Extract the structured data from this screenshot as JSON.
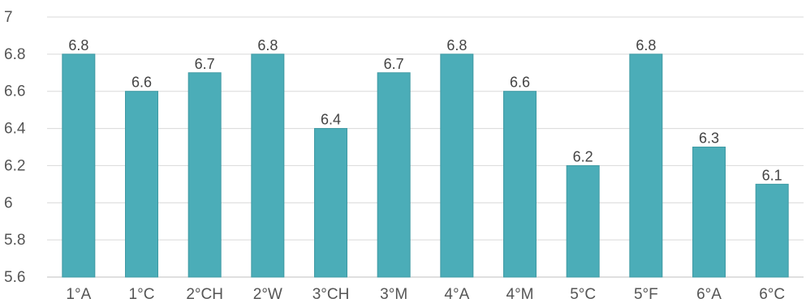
{
  "chart_data": {
    "type": "bar",
    "title": "",
    "xlabel": "",
    "ylabel": "",
    "categories": [
      "1°A",
      "1°C",
      "2°CH",
      "2°W",
      "3°CH",
      "3°M",
      "4°A",
      "4°M",
      "5°C",
      "5°F",
      "6°A",
      "6°C"
    ],
    "values": [
      6.8,
      6.6,
      6.7,
      6.8,
      6.4,
      6.7,
      6.8,
      6.6,
      6.2,
      6.8,
      6.3,
      6.1
    ],
    "data_labels": [
      "6.8",
      "6.6",
      "6.7",
      "6.8",
      "6.4",
      "6.7",
      "6.8",
      "6.6",
      "6.2",
      "6.8",
      "6.3",
      "6.1"
    ],
    "ylim": [
      5.6,
      7
    ],
    "yticks": [
      5.6,
      5.8,
      6,
      6.2,
      6.4,
      6.6,
      6.8,
      7
    ],
    "ytick_labels": [
      "5.6",
      "5.8",
      "6",
      "6.2",
      "6.4",
      "6.6",
      "6.8",
      "7"
    ],
    "grid": true,
    "legend": "none",
    "bar_color": "#4badb8",
    "bar_border_color": "#3f9aa4"
  }
}
